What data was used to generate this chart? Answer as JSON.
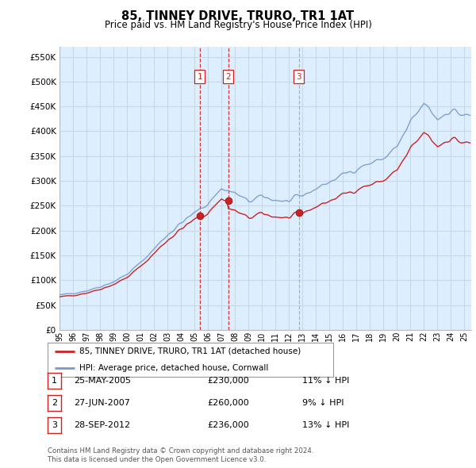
{
  "title": "85, TINNEY DRIVE, TRURO, TR1 1AT",
  "subtitle": "Price paid vs. HM Land Registry's House Price Index (HPI)",
  "footer1": "Contains HM Land Registry data © Crown copyright and database right 2024.",
  "footer2": "This data is licensed under the Open Government Licence v3.0.",
  "legend_line1": "85, TINNEY DRIVE, TRURO, TR1 1AT (detached house)",
  "legend_line2": "HPI: Average price, detached house, Cornwall",
  "transactions": [
    {
      "num": 1,
      "date": "25-MAY-2005",
      "price": "£230,000",
      "change": "11% ↓ HPI",
      "year": 2005.38,
      "vline_style": "red"
    },
    {
      "num": 2,
      "date": "27-JUN-2007",
      "price": "£260,000",
      "change": "9% ↓ HPI",
      "year": 2007.49,
      "vline_style": "red"
    },
    {
      "num": 3,
      "date": "28-SEP-2012",
      "price": "£236,000",
      "change": "13% ↓ HPI",
      "year": 2012.74,
      "vline_style": "grey"
    }
  ],
  "transaction_prices": [
    230000,
    260000,
    236000
  ],
  "ylim": [
    0,
    570000
  ],
  "yticks": [
    0,
    50000,
    100000,
    150000,
    200000,
    250000,
    300000,
    350000,
    400000,
    450000,
    500000,
    550000
  ],
  "line_color_red": "#cc2222",
  "line_color_blue": "#7799cc",
  "vline_color_red": "#cc2222",
  "vline_color_grey": "#aaaaaa",
  "grid_color": "#c8d8e8",
  "background_color": "#ffffff",
  "plot_bg_color": "#ddeeff",
  "xmin": 1995,
  "xmax": 2025.5
}
